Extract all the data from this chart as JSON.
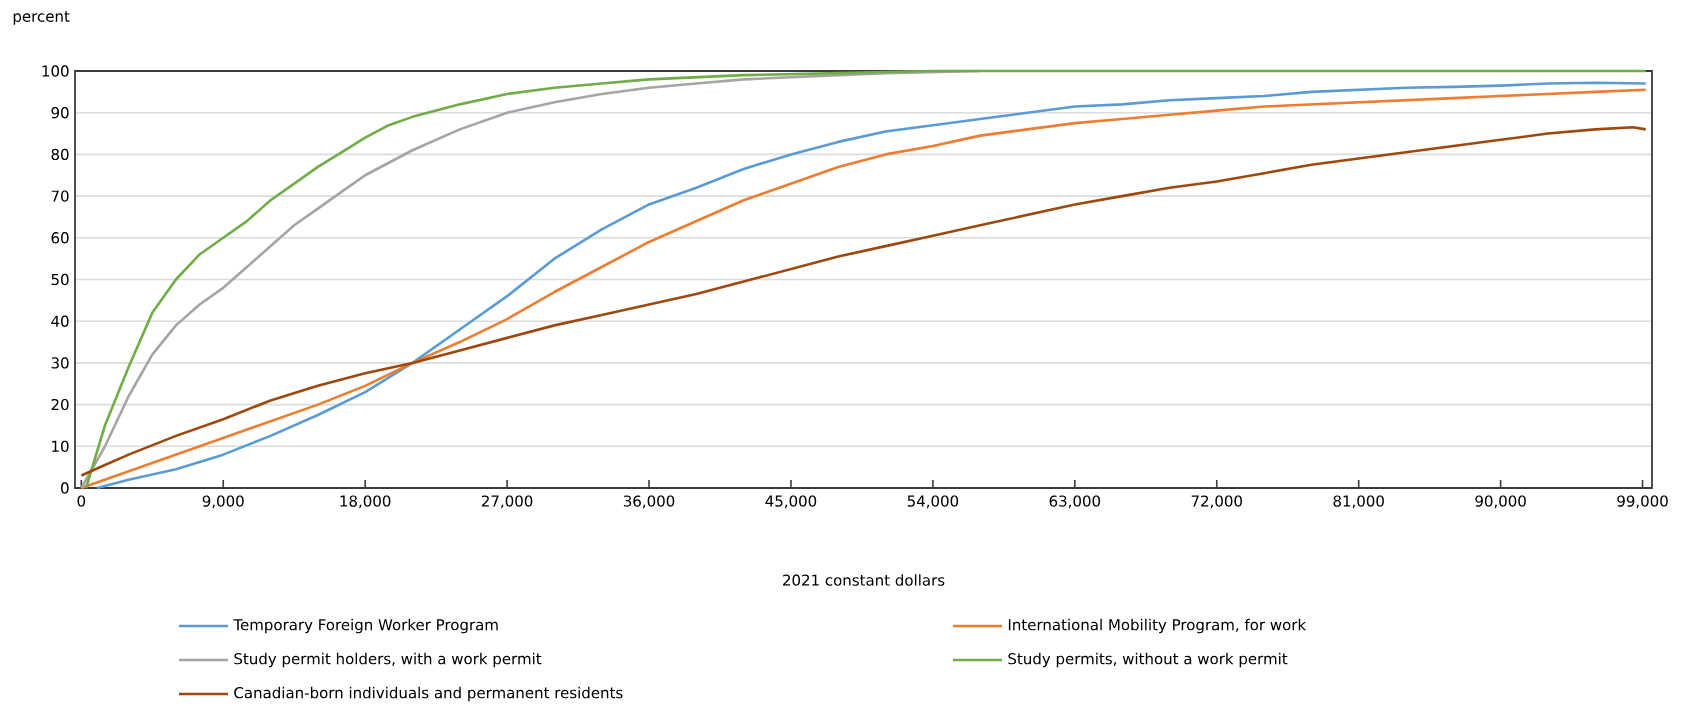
{
  "chart_data": {
    "type": "line",
    "ylabel": "percent",
    "xlabel": "2021 constant dollars",
    "xlim": [
      -400,
      99600
    ],
    "ylim": [
      0,
      100
    ],
    "xticks": [
      0,
      {
        "value": 9000,
        "label": "9,000"
      },
      {
        "value": 18000,
        "label": "18,000"
      },
      {
        "value": 27000,
        "label": "27,000"
      },
      {
        "value": 36000,
        "label": "36,000"
      },
      {
        "value": 45000,
        "label": "45,000"
      },
      {
        "value": 54000,
        "label": "54,000"
      },
      {
        "value": 63000,
        "label": "63,000"
      },
      {
        "value": 72000,
        "label": "72,000"
      },
      {
        "value": 81000,
        "label": "81,000"
      },
      {
        "value": 90000,
        "label": "90,000"
      },
      {
        "value": 99000,
        "label": "99,000"
      }
    ],
    "yticks": [
      0,
      10,
      20,
      30,
      40,
      50,
      60,
      70,
      80,
      90,
      100
    ],
    "grid": "y",
    "legend": "bottom",
    "series": [
      {
        "name": "Temporary Foreign Worker Program",
        "color": "#5b9bd5",
        "x": [
          1000,
          3000,
          6000,
          9000,
          12000,
          15000,
          18000,
          21000,
          24000,
          27000,
          30000,
          33000,
          36000,
          39000,
          42000,
          45000,
          48000,
          51000,
          54000,
          57000,
          60000,
          63000,
          66000,
          69000,
          72000,
          75000,
          78000,
          81000,
          84000,
          87000,
          90000,
          93000,
          96000,
          99200
        ],
        "values": [
          0,
          2,
          4.5,
          8,
          12.5,
          17.5,
          23,
          30,
          38,
          46,
          55,
          62,
          68,
          72,
          76.5,
          80,
          83,
          85.5,
          87,
          88.5,
          90,
          91.5,
          92,
          93,
          93.5,
          94,
          95,
          95.5,
          96,
          96.2,
          96.5,
          97,
          97.2,
          97
        ]
      },
      {
        "name": "International Mobility Program, for work",
        "color": "#ed7d31",
        "x": [
          0,
          3000,
          6000,
          9000,
          12000,
          15000,
          18000,
          21000,
          24000,
          27000,
          30000,
          33000,
          36000,
          39000,
          42000,
          45000,
          48000,
          51000,
          54000,
          57000,
          60000,
          63000,
          66000,
          69000,
          72000,
          75000,
          78000,
          81000,
          84000,
          87000,
          90000,
          93000,
          96000,
          99200
        ],
        "values": [
          0,
          4,
          8,
          12,
          16,
          20,
          24.5,
          30,
          35,
          40.5,
          47,
          53,
          59,
          64,
          69,
          73,
          77,
          80,
          82,
          84.5,
          86,
          87.5,
          88.5,
          89.5,
          90.5,
          91.5,
          92,
          92.5,
          93,
          93.5,
          94,
          94.5,
          95,
          95.5
        ]
      },
      {
        "name": "Study permit holders, with a work permit",
        "color": "#a5a5a5",
        "x": [
          0,
          1500,
          3000,
          4500,
          6000,
          7500,
          9000,
          10500,
          12000,
          13500,
          15000,
          16500,
          18000,
          19500,
          21000,
          24000,
          27000,
          30000,
          33000,
          36000,
          39000,
          42000,
          45000,
          48000,
          51000,
          57000
        ],
        "values": [
          0,
          10,
          22,
          32,
          39,
          44,
          48,
          53,
          58,
          63,
          67,
          71,
          75,
          78,
          81,
          86,
          90,
          92.5,
          94.5,
          96,
          97,
          98,
          98.5,
          99,
          99.5,
          100
        ]
      },
      {
        "name": "Study permits, without a work permit",
        "color": "#70ad47",
        "x": [
          300,
          1500,
          3000,
          4500,
          6000,
          7500,
          9000,
          10500,
          12000,
          13500,
          15000,
          16500,
          18000,
          19500,
          21000,
          24000,
          27000,
          30000,
          33000,
          36000,
          39000,
          42000,
          48000,
          54000,
          99200
        ],
        "values": [
          0,
          15,
          29,
          42,
          50,
          56,
          60,
          64,
          69,
          73,
          77,
          80.5,
          84,
          87,
          89,
          92,
          94.5,
          96,
          97,
          98,
          98.5,
          99,
          99.5,
          100,
          100
        ]
      },
      {
        "name": "Canadian-born individuals and permanent residents",
        "color": "#9e480e",
        "x": [
          0,
          1500,
          3000,
          6000,
          9000,
          12000,
          15000,
          18000,
          21000,
          24000,
          27000,
          30000,
          33000,
          36000,
          39000,
          42000,
          45000,
          48000,
          51000,
          54000,
          57000,
          60000,
          63000,
          66000,
          69000,
          72000,
          75000,
          78000,
          81000,
          84000,
          87000,
          90000,
          93000,
          96000,
          98400,
          99200
        ],
        "values": [
          3,
          5.5,
          8,
          12.5,
          16.5,
          21,
          24.5,
          27.5,
          30,
          33,
          36,
          39,
          41.5,
          44,
          46.5,
          49.5,
          52.5,
          55.5,
          58,
          60.5,
          63,
          65.5,
          68,
          70,
          72,
          73.5,
          75.5,
          77.5,
          79,
          80.5,
          82,
          83.5,
          85,
          86,
          86.5,
          86
        ]
      }
    ]
  }
}
